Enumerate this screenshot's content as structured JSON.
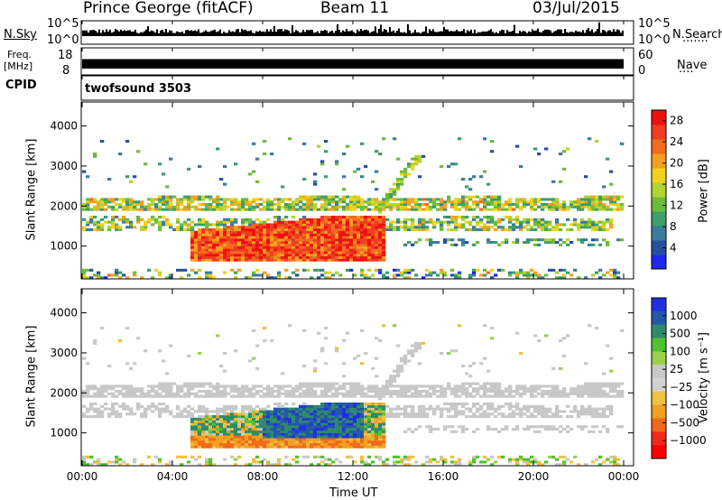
{
  "header": {
    "station": "Prince George (fitACF)",
    "beam": "Beam 11",
    "date": "03/Jul/2015"
  },
  "aux_panels": {
    "nsky_label": "N.Sky",
    "nsky_tick_hi": "10^5",
    "nsky_tick_lo": "10^0",
    "nsearch_label": "N.Search",
    "nsearch_tick_hi": "10^5",
    "nsearch_tick_lo": "10^0",
    "freq_label": "Freq.",
    "freq_unit": "[MHz]",
    "freq_tick_hi": "18",
    "freq_tick_lo": "8",
    "nave_label": "Nave",
    "nave_tick_hi": "60",
    "nave_tick_lo": "0",
    "cpid_label": "CPID",
    "cpid_value": "twofsound 3503"
  },
  "colors": {
    "power_scale": [
      "#1e28f0",
      "#28509e",
      "#3c7c9c",
      "#3e9e6c",
      "#6cbc3c",
      "#b4d232",
      "#f0d21e",
      "#f5a020",
      "#f26a1e",
      "#f03c20",
      "#ef1010"
    ],
    "velocity_scale": [
      "#2030e0",
      "#2458a8",
      "#2f8a6a",
      "#52c030",
      "#9bd04a",
      "#c8c8c8",
      "#d2d2d2",
      "#f0c040",
      "#f2a020",
      "#f06a18",
      "#f02a18",
      "#ff0000"
    ]
  },
  "chart_data": [
    {
      "type": "heatmap",
      "panel": "power",
      "ylabel": "Slant Range [km]",
      "xlabel": "",
      "x_ticks": [
        "00:00",
        "04:00",
        "08:00",
        "12:00",
        "16:00",
        "20:00",
        "00:00"
      ],
      "x_range_hours": [
        0,
        24
      ],
      "y_ticks": [
        "1000",
        "2000",
        "3000",
        "4000"
      ],
      "y_range_km": [
        180,
        4600
      ],
      "colorbar_label": "Power [dB]",
      "colorbar_ticks": [
        "4",
        "8",
        "12",
        "16",
        "20",
        "24",
        "28"
      ],
      "colorbar_range": [
        0,
        30
      ]
    },
    {
      "type": "heatmap",
      "panel": "velocity",
      "ylabel": "Slant Range [km]",
      "xlabel": "Time UT",
      "x_ticks": [
        "00:00",
        "04:00",
        "08:00",
        "12:00",
        "16:00",
        "20:00",
        "00:00"
      ],
      "x_range_hours": [
        0,
        24
      ],
      "y_ticks": [
        "1000",
        "2000",
        "3000",
        "4000"
      ],
      "y_range_km": [
        180,
        4600
      ],
      "colorbar_label": "Velocity [m s⁻¹]",
      "colorbar_ticks": [
        "1000",
        "500",
        "100",
        "25",
        "−25",
        "−100",
        "−500",
        "−1000"
      ],
      "colorbar_range": [
        -1000,
        1000
      ]
    }
  ]
}
